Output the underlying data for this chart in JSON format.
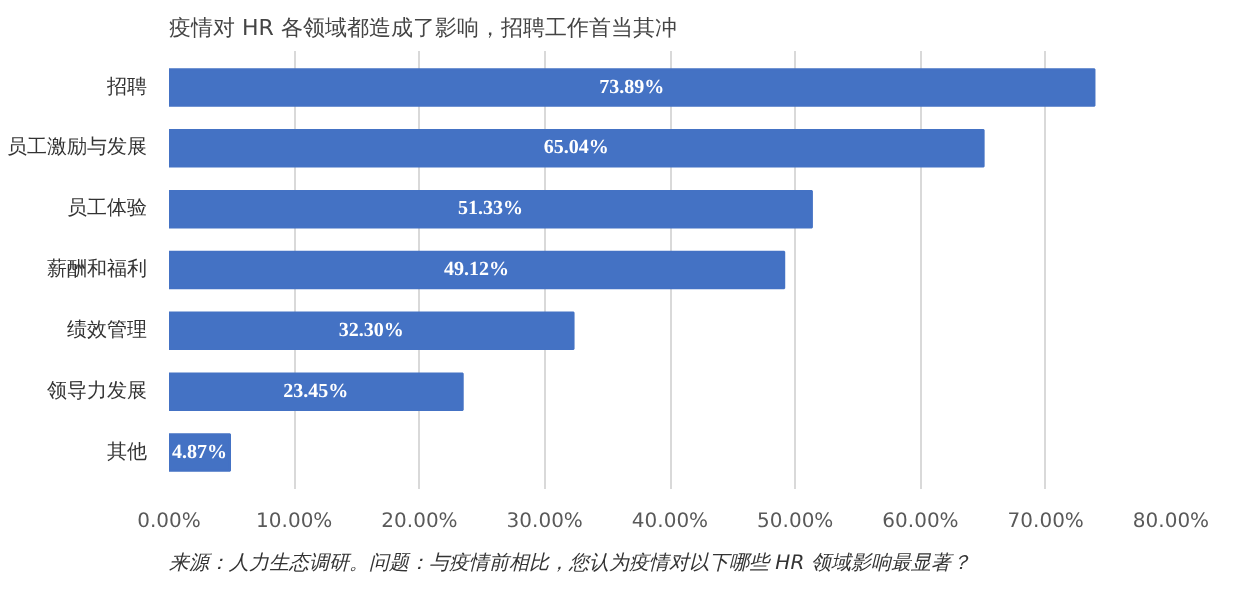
{
  "chart_data": {
    "type": "bar",
    "orientation": "horizontal",
    "title": "疫情对 HR 各领域都造成了影响，招聘工作首当其冲",
    "categories": [
      "招聘",
      "员工激励与发展",
      "员工体验",
      "薪酬和福利",
      "绩效管理",
      "领导力发展",
      "其他"
    ],
    "values": [
      73.89,
      65.04,
      51.33,
      49.12,
      32.3,
      23.45,
      4.87
    ],
    "value_labels": [
      "73.89%",
      "65.04%",
      "51.33%",
      "49.12%",
      "32.30%",
      "23.45%",
      "4.87%"
    ],
    "color": "#4472c4",
    "xlim": [
      0,
      80
    ],
    "xticks": [
      {
        "value": 0,
        "label": "0.00%"
      },
      {
        "value": 10,
        "label": "10.00%"
      },
      {
        "value": 20,
        "label": "20.00%"
      },
      {
        "value": 30,
        "label": "30.00%"
      },
      {
        "value": 40,
        "label": "40.00%"
      },
      {
        "value": 50,
        "label": "50.00%"
      },
      {
        "value": 60,
        "label": "60.00%"
      },
      {
        "value": 70,
        "label": "70.00%"
      },
      {
        "value": 80,
        "label": "80.00%"
      }
    ],
    "grid": "x",
    "annotations": [
      "来源：人力生态调研。问题：与疫情前相比，您认为疫情对以下哪些 HR 领域影响最显著？"
    ]
  }
}
